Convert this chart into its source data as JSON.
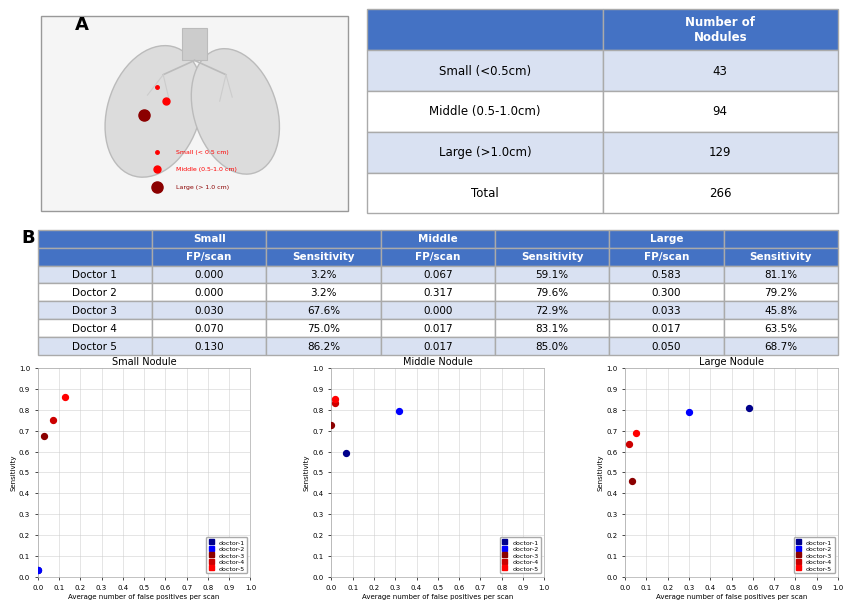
{
  "panel_a_table": {
    "header": [
      "",
      "Number of\nNodules"
    ],
    "rows": [
      [
        "Small (<0.5cm)",
        "43"
      ],
      [
        "Middle (0.5-1.0cm)",
        "94"
      ],
      [
        "Large (>1.0cm)",
        "129"
      ],
      [
        "Total",
        "266"
      ]
    ],
    "header_bg": "#4472C4",
    "header_fg": "#FFFFFF",
    "row_bg_odd": "#D9E1F2",
    "row_bg_even": "#FFFFFF",
    "total_bg": "#FFFFFF"
  },
  "panel_b_table": {
    "header1": [
      "",
      "Small",
      "",
      "Middle",
      "",
      "Large",
      ""
    ],
    "header2": [
      "",
      "FP/scan",
      "Sensitivity",
      "FP/scan",
      "Sensitivity",
      "FP/scan",
      "Sensitivity"
    ],
    "rows": [
      [
        "Doctor 1",
        "0.000",
        "3.2%",
        "0.067",
        "59.1%",
        "0.583",
        "81.1%"
      ],
      [
        "Doctor 2",
        "0.000",
        "3.2%",
        "0.317",
        "79.6%",
        "0.300",
        "79.2%"
      ],
      [
        "Doctor 3",
        "0.030",
        "67.6%",
        "0.000",
        "72.9%",
        "0.033",
        "45.8%"
      ],
      [
        "Doctor 4",
        "0.070",
        "75.0%",
        "0.017",
        "83.1%",
        "0.017",
        "63.5%"
      ],
      [
        "Doctor 5",
        "0.130",
        "86.2%",
        "0.017",
        "85.0%",
        "0.050",
        "68.7%"
      ]
    ],
    "header_bg": "#4472C4",
    "header_fg": "#FFFFFF",
    "row_bg_odd": "#D9E1F2",
    "row_bg_even": "#FFFFFF"
  },
  "scatter": {
    "small": {
      "title": "Small Nodule",
      "doctors": [
        {
          "name": "doctor-1",
          "fp": 0.0,
          "sens": 0.032
        },
        {
          "name": "doctor-2",
          "fp": 0.0,
          "sens": 0.032
        },
        {
          "name": "doctor-3",
          "fp": 0.03,
          "sens": 0.676
        },
        {
          "name": "doctor-4",
          "fp": 0.07,
          "sens": 0.75
        },
        {
          "name": "doctor-5",
          "fp": 0.13,
          "sens": 0.862
        }
      ]
    },
    "middle": {
      "title": "Middle Nodule",
      "doctors": [
        {
          "name": "doctor-1",
          "fp": 0.067,
          "sens": 0.591
        },
        {
          "name": "doctor-2",
          "fp": 0.317,
          "sens": 0.796
        },
        {
          "name": "doctor-3",
          "fp": 0.0,
          "sens": 0.729
        },
        {
          "name": "doctor-4",
          "fp": 0.017,
          "sens": 0.831
        },
        {
          "name": "doctor-5",
          "fp": 0.017,
          "sens": 0.85
        }
      ]
    },
    "large": {
      "title": "Large Nodule",
      "doctors": [
        {
          "name": "doctor-1",
          "fp": 0.583,
          "sens": 0.811
        },
        {
          "name": "doctor-2",
          "fp": 0.3,
          "sens": 0.792
        },
        {
          "name": "doctor-3",
          "fp": 0.033,
          "sens": 0.458
        },
        {
          "name": "doctor-4",
          "fp": 0.017,
          "sens": 0.635
        },
        {
          "name": "doctor-5",
          "fp": 0.05,
          "sens": 0.687
        }
      ]
    },
    "xlabel": "Average number of false positives per scan",
    "ylabel": "Sensitivity",
    "xlim": [
      0.0,
      1.0
    ],
    "ylim": [
      0.0,
      1.0
    ],
    "xticks": [
      0.0,
      0.1,
      0.2,
      0.3,
      0.4,
      0.5,
      0.6,
      0.7,
      0.8,
      0.9,
      1.0
    ],
    "yticks": [
      0.0,
      0.1,
      0.2,
      0.3,
      0.4,
      0.5,
      0.6,
      0.7,
      0.8,
      0.9,
      1.0
    ]
  },
  "doctor_colors": {
    "doctor-1": "#00008B",
    "doctor-2": "#0000FF",
    "doctor-3": "#8B0000",
    "doctor-4": "#CC0000",
    "doctor-5": "#FF0000"
  },
  "label_A": "A",
  "label_B": "B",
  "bg_color": "#FFFFFF"
}
